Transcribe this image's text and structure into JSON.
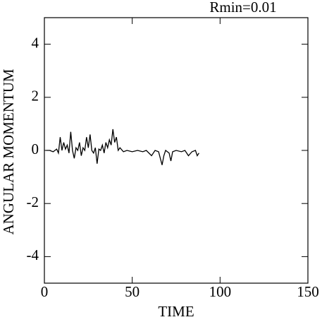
{
  "chart_data": {
    "type": "line",
    "title": "Rmin=0.01",
    "xlabel": "TIME",
    "ylabel": "ANGULAR MOMENTUM",
    "x": [
      1,
      3,
      5,
      7,
      8,
      9,
      10,
      11,
      12,
      13,
      14,
      15,
      16,
      17,
      18,
      19,
      20,
      21,
      22,
      23,
      24,
      25,
      26,
      27,
      28,
      29,
      30,
      31,
      32,
      33,
      34,
      35,
      36,
      37,
      38,
      39,
      40,
      41,
      42,
      43,
      45,
      47,
      50,
      53,
      56,
      58,
      61,
      63,
      65,
      66,
      67,
      68,
      69,
      71,
      72,
      73,
      75,
      78,
      80,
      82,
      84,
      86,
      87,
      88
    ],
    "series": [
      {
        "name": "angular momentum",
        "color": "#000000",
        "values": [
          0.0,
          0.0,
          -0.05,
          0.05,
          -0.1,
          0.5,
          0.0,
          0.3,
          0.05,
          0.2,
          -0.1,
          0.7,
          0.0,
          -0.3,
          0.1,
          0.0,
          0.3,
          -0.2,
          0.1,
          0.0,
          0.5,
          0.1,
          0.6,
          0.0,
          -0.1,
          0.1,
          -0.5,
          0.05,
          0.0,
          0.2,
          -0.1,
          0.3,
          0.1,
          0.4,
          0.2,
          0.8,
          0.3,
          0.5,
          0.0,
          0.1,
          -0.05,
          0.0,
          -0.05,
          0.0,
          -0.05,
          0.0,
          -0.2,
          0.0,
          -0.05,
          -0.3,
          -0.55,
          -0.2,
          0.0,
          -0.1,
          -0.4,
          -0.05,
          0.0,
          -0.05,
          0.0,
          -0.2,
          -0.05,
          0.0,
          -0.2,
          -0.1
        ]
      }
    ],
    "xlim": [
      0,
      150
    ],
    "xticks": [
      0,
      50,
      100,
      150
    ],
    "ylim": [
      -5,
      5
    ],
    "yticks": [
      -4,
      -2,
      0,
      2,
      4
    ]
  }
}
